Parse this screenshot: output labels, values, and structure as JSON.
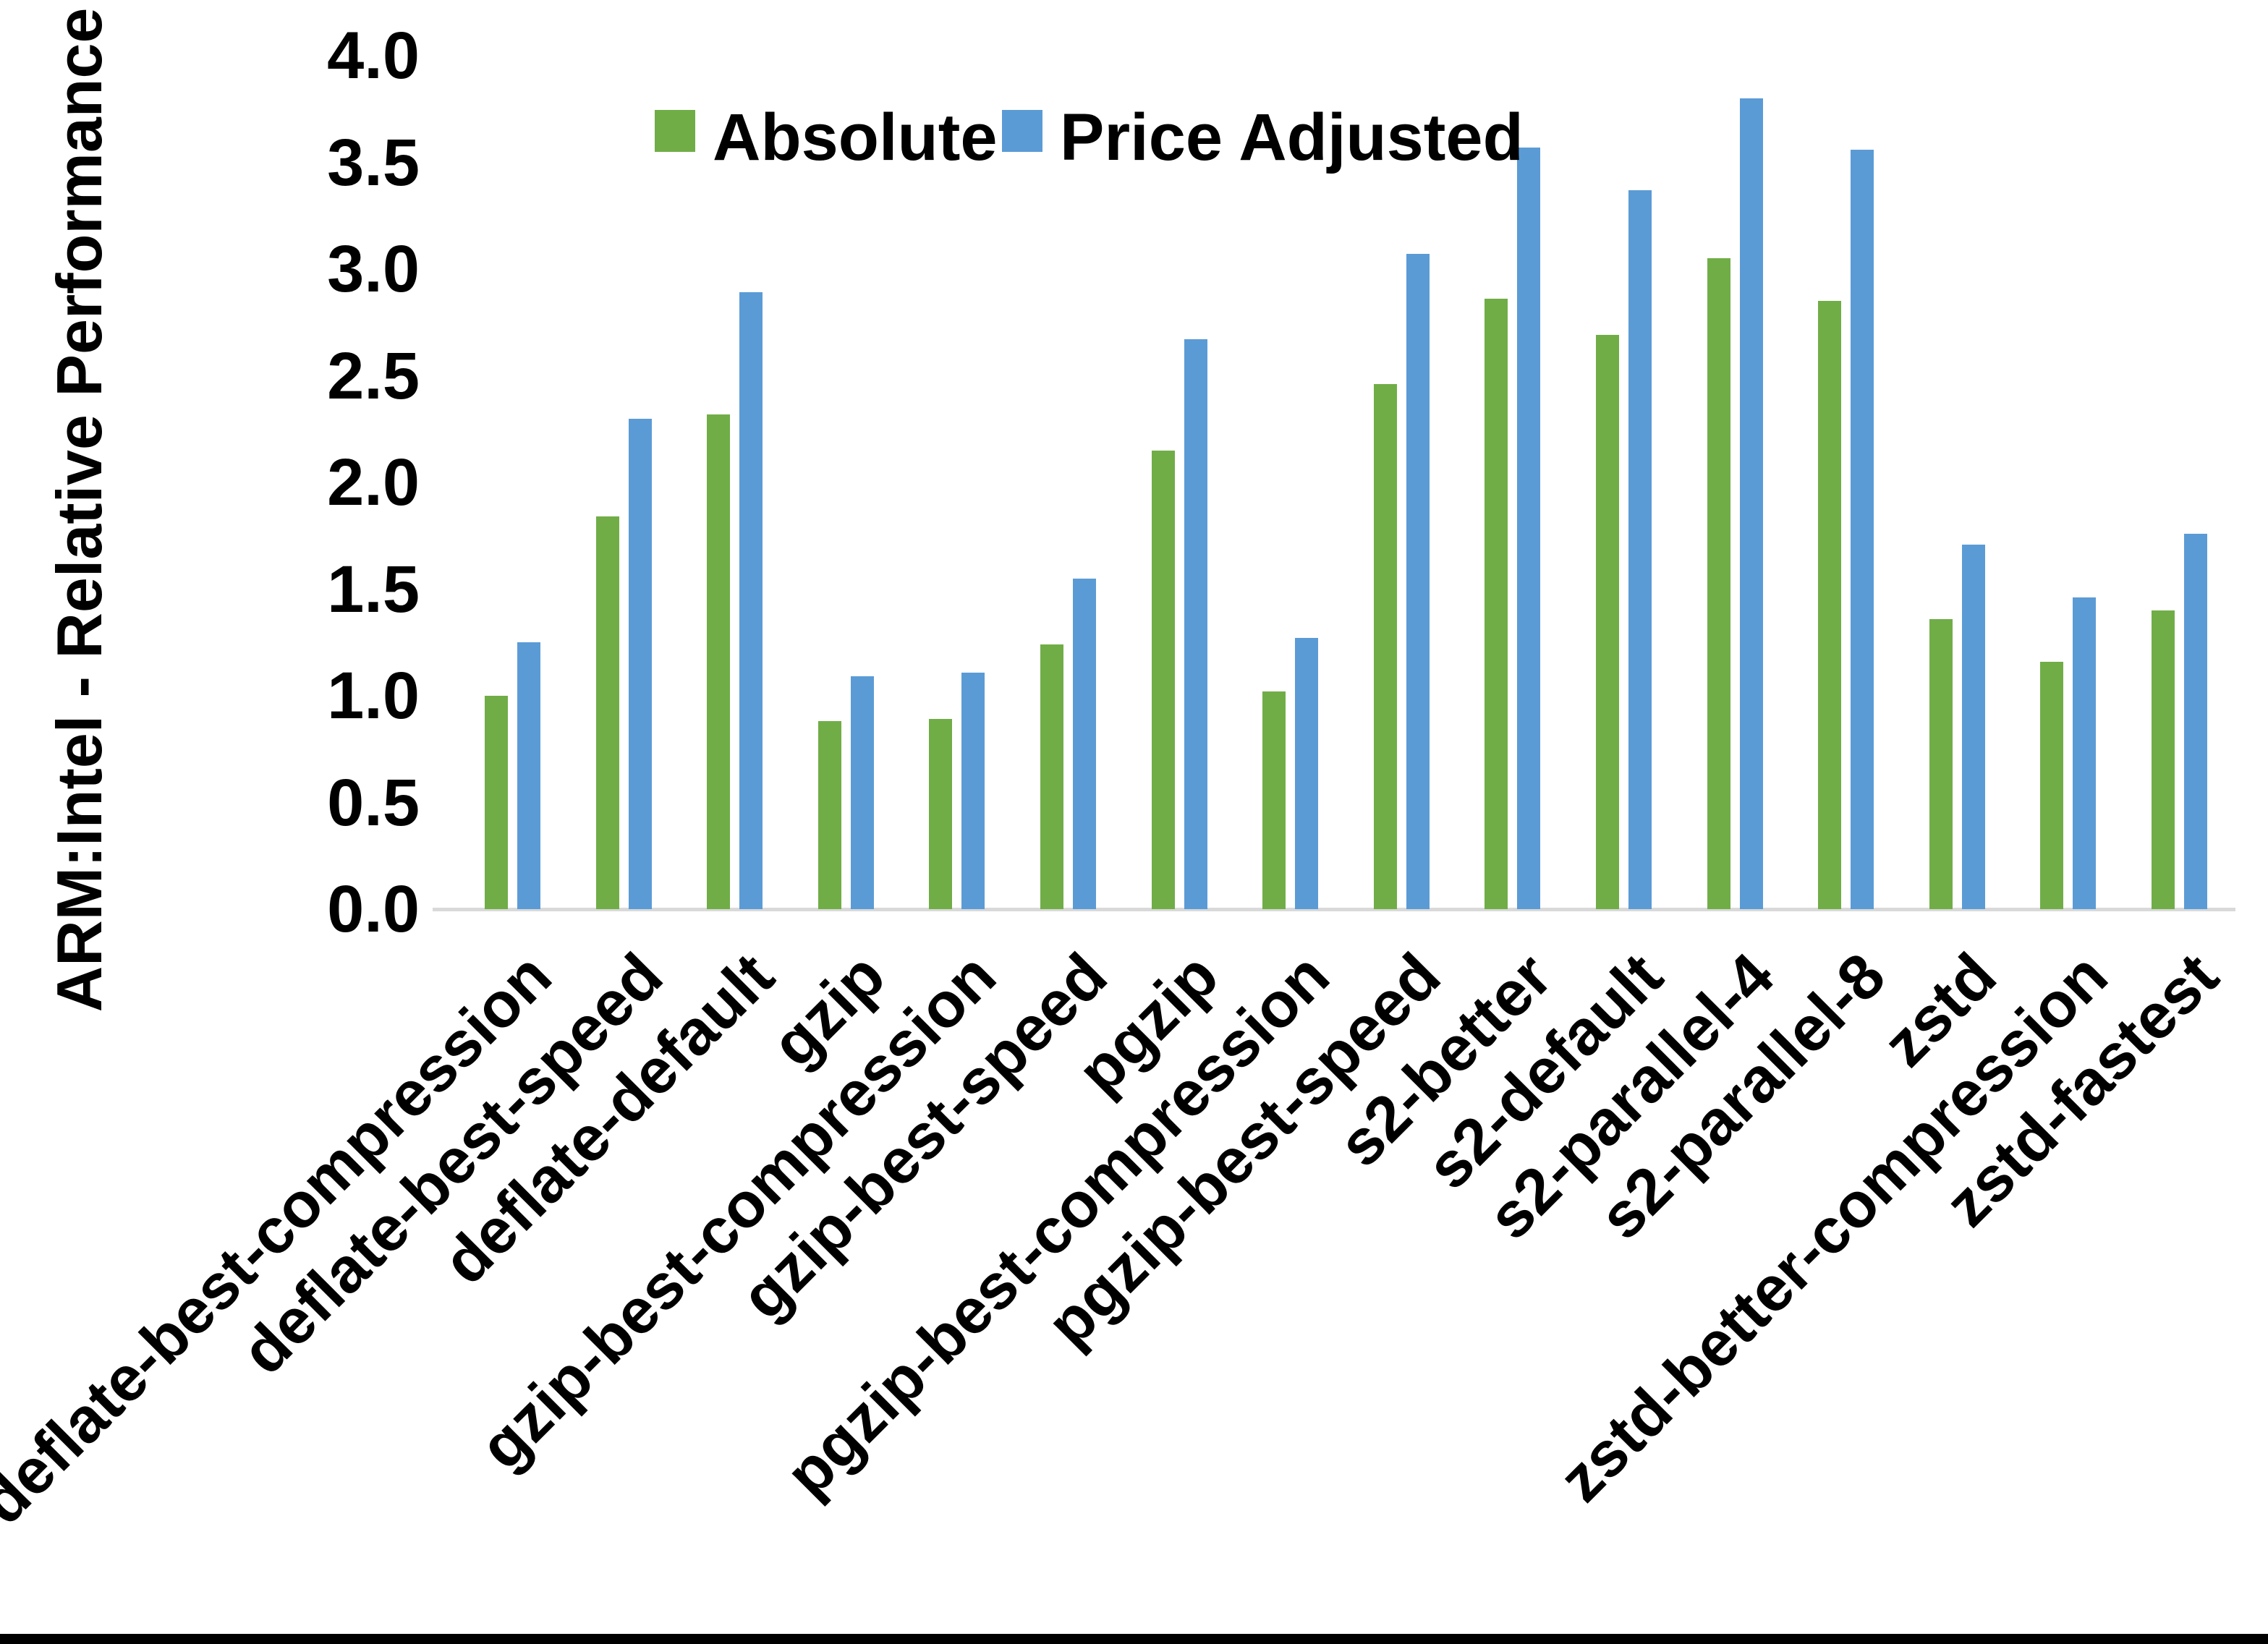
{
  "chart_data": {
    "type": "bar",
    "title": "",
    "xlabel": "",
    "ylabel": "ARM:Intel - Relative Performance",
    "ylim": [
      0.0,
      4.0
    ],
    "y_tick_labels": [
      "0.0",
      "0.5",
      "1.0",
      "1.5",
      "2.0",
      "2.5",
      "3.0",
      "3.5",
      "4.0"
    ],
    "grid": false,
    "legend_position": "top-center",
    "categories": [
      "deflate-best-compression",
      "deflate-best-speed",
      "deflate-default",
      "gzip",
      "gzip-best-compression",
      "gzip-best-speed",
      "pgzip",
      "pgzip-best-compression",
      "pgzip-best-speed",
      "s2-better",
      "s2-default",
      "s2-parallel-4",
      "s2-parallel-8",
      "zstd",
      "zstd-better-compression",
      "zstd-fastest"
    ],
    "series": [
      {
        "name": "Absolute",
        "color": "#70AD47",
        "values": [
          1.0,
          1.84,
          2.32,
          0.88,
          0.89,
          1.24,
          2.15,
          1.02,
          2.46,
          2.86,
          2.69,
          3.05,
          2.85,
          1.36,
          1.16,
          1.4
        ]
      },
      {
        "name": "Price Adjusted",
        "color": "#5B9BD5",
        "values": [
          1.25,
          2.3,
          2.89,
          1.09,
          1.11,
          1.55,
          2.67,
          1.27,
          3.07,
          3.57,
          3.37,
          3.8,
          3.56,
          1.71,
          1.46,
          1.76
        ]
      }
    ]
  },
  "colors": {
    "background": "#FFFFFF",
    "axis_line": "#D9D9D9",
    "text": "#000000",
    "bottom_bar": "#000000"
  }
}
